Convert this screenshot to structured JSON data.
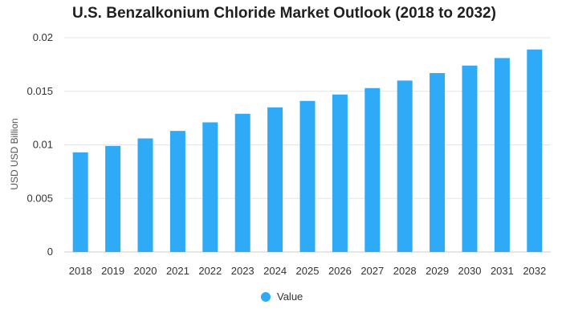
{
  "chart_data": {
    "type": "bar",
    "title": "U.S. Benzalkonium Chloride Market Outlook (2018 to 2032)",
    "ylabel": "USD USD Billion",
    "xlabel": "",
    "categories": [
      "2018",
      "2019",
      "2020",
      "2021",
      "2022",
      "2023",
      "2024",
      "2025",
      "2026",
      "2027",
      "2028",
      "2029",
      "2030",
      "2031",
      "2032"
    ],
    "series": [
      {
        "name": "Value",
        "values": [
          0.0093,
          0.0099,
          0.0106,
          0.0113,
          0.0121,
          0.0129,
          0.0135,
          0.0141,
          0.0147,
          0.0153,
          0.016,
          0.0167,
          0.0174,
          0.0181,
          0.0189
        ]
      }
    ],
    "ylim": [
      0,
      0.02
    ],
    "yticks": [
      "0",
      "0.005",
      "0.01",
      "0.015",
      "0.02"
    ],
    "ytick_values": [
      0,
      0.005,
      0.01,
      0.015,
      0.02
    ],
    "grid": true,
    "legend_position": "bottom-center",
    "bar_color": "#2eaaf7"
  }
}
